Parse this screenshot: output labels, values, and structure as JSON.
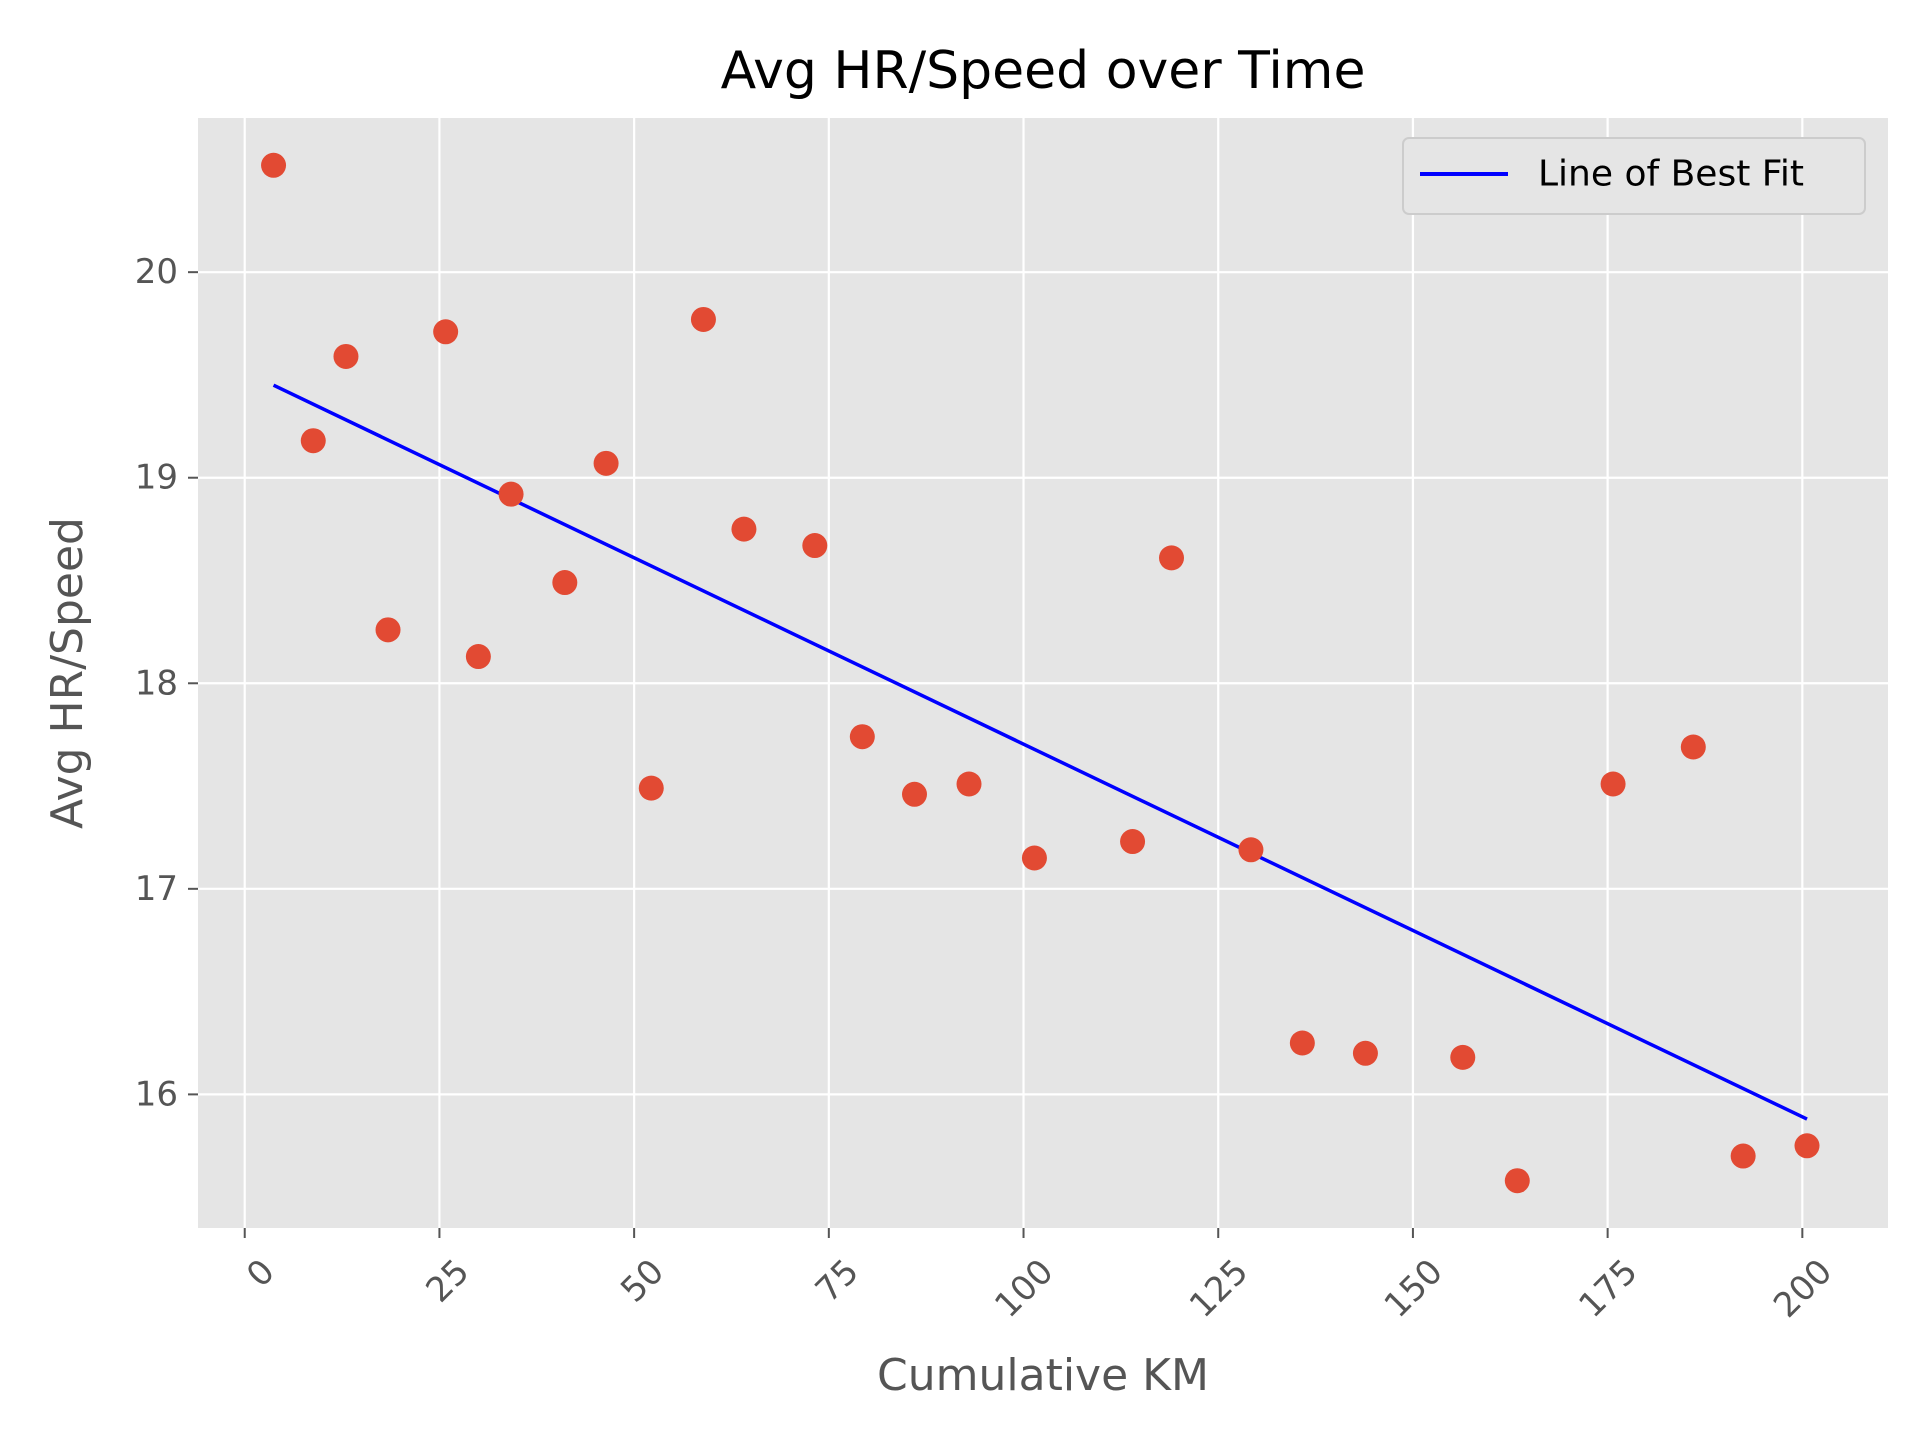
{
  "chart_data": {
    "type": "scatter",
    "title": "Avg HR/Speed over Time",
    "xlabel": "Cumulative KM",
    "ylabel": "Avg HR/Speed",
    "xlim": [
      -6,
      211
    ],
    "ylim": [
      15.35,
      20.75
    ],
    "xticks": [
      "0",
      "25",
      "50",
      "75",
      "100",
      "125",
      "150",
      "175",
      "200"
    ],
    "yticks": [
      "16",
      "17",
      "18",
      "19",
      "20"
    ],
    "grid": true,
    "legend_position": "top-right",
    "point_color": "#E24A33",
    "line_color": "#0000FF",
    "background_color": "#E5E5E5",
    "series": [
      {
        "type": "scatter",
        "x": [
          3.7,
          8.8,
          13.0,
          18.4,
          25.8,
          30.0,
          34.2,
          41.1,
          46.4,
          52.2,
          58.9,
          64.1,
          73.2,
          79.3,
          86.0,
          93.0,
          101.4,
          114.0,
          119.0,
          129.2,
          135.8,
          143.9,
          156.4,
          163.4,
          175.7,
          186.0,
          192.4,
          200.6
        ],
        "y": [
          20.52,
          19.18,
          19.59,
          18.26,
          19.71,
          18.13,
          18.92,
          18.49,
          19.07,
          17.49,
          19.77,
          18.75,
          18.67,
          17.74,
          17.46,
          17.51,
          17.15,
          17.23,
          18.61,
          17.19,
          16.25,
          16.2,
          16.18,
          15.58,
          17.51,
          17.69,
          15.7,
          15.75
        ]
      },
      {
        "type": "line",
        "name": "Line of Best Fit",
        "x": [
          3.7,
          200.6
        ],
        "y": [
          19.45,
          15.88
        ]
      }
    ]
  }
}
